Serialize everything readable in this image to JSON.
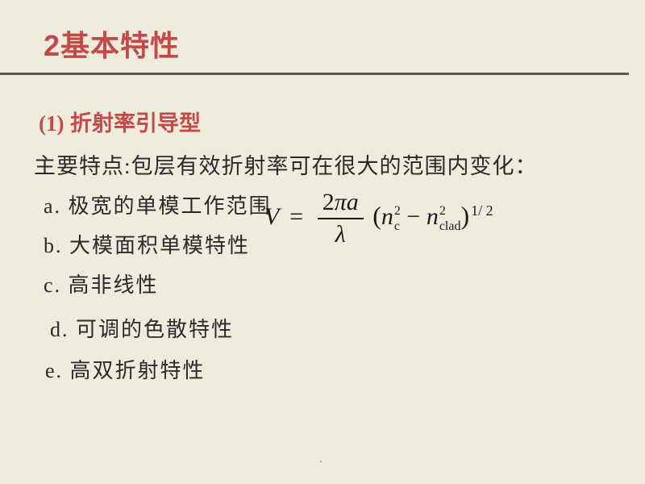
{
  "colors": {
    "background": "#f0ecdd",
    "accent": "#c24a48",
    "rule": "#5a5a42",
    "text": "#2a2a2a"
  },
  "title": {
    "number": "2",
    "text": "基本特性"
  },
  "subtitle": {
    "number": "(1)",
    "text": " 折射率引导型"
  },
  "main_point": "主要特点:包层有效折射率可在很大的范围内变化：",
  "items": {
    "a": "a. 极宽的单模工作范围",
    "b": "b. 大模面积单模特性",
    "c": "c. 高非线性",
    "d": "d. 可调的色散特性",
    "e": "e. 高双折射特性"
  },
  "formula": {
    "lhs": "V",
    "eq": "=",
    "numerator_2": "2",
    "numerator_pi": "π",
    "numerator_a": "a",
    "denominator": "λ",
    "lparen": "(",
    "n1_base": "n",
    "n1_sup": "2",
    "n1_sub": "c",
    "minus": " − ",
    "n2_base": "n",
    "n2_sup": "2",
    "n2_sub": "clad",
    "rparen": ")",
    "outer_exp": "1/ 2"
  },
  "footer_dot": "."
}
